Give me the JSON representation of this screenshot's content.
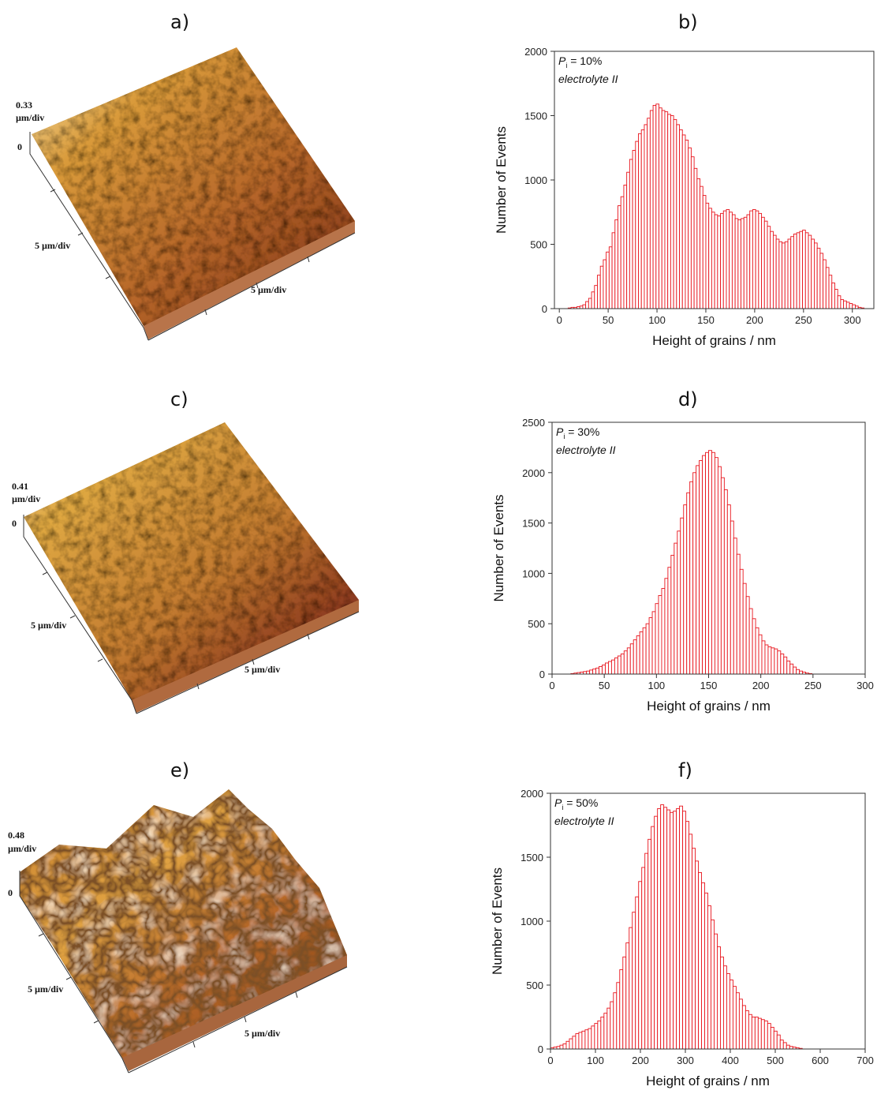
{
  "panel_labels": {
    "a": "a)",
    "b": "b)",
    "c": "c)",
    "d": "d)",
    "e": "e)",
    "f": "f)"
  },
  "afm": [
    {
      "z_scale": "0.33",
      "z_unit": "µm/div",
      "zero": "0",
      "xy_left": "5 µm/div",
      "xy_right": "5 µm/div"
    },
    {
      "z_scale": "0.41",
      "z_unit": "µm/div",
      "zero": "0",
      "xy_left": "5 µm/div",
      "xy_right": "5 µm/div"
    },
    {
      "z_scale": "0.48",
      "z_unit": "µm/div",
      "zero": "0",
      "xy_left": "5 µm/div",
      "xy_right": "5 µm/div"
    }
  ],
  "colors": {
    "bar_stroke": "#e8141c",
    "bar_fill": "#ffffff",
    "axis": "#333333"
  },
  "chart_data": [
    {
      "type": "bar",
      "annotation_symbol": "P",
      "annotation_sub": "i",
      "annotation_value": " = 10%",
      "annotation_line2": "electrolyte II",
      "xlabel": "Height of grains / nm",
      "ylabel": "Number of Events",
      "xlim": [
        -5,
        322
      ],
      "ylim": [
        0,
        2000
      ],
      "xticks": [
        0,
        50,
        100,
        150,
        200,
        250,
        300
      ],
      "yticks": [
        0,
        500,
        1000,
        1500,
        2000
      ],
      "bin_start": 0,
      "bin_width": 3,
      "values": [
        0,
        0,
        0,
        5,
        10,
        10,
        15,
        20,
        30,
        55,
        80,
        130,
        180,
        260,
        330,
        380,
        440,
        480,
        590,
        690,
        800,
        870,
        960,
        1060,
        1160,
        1230,
        1300,
        1360,
        1390,
        1430,
        1480,
        1540,
        1580,
        1590,
        1560,
        1540,
        1530,
        1510,
        1500,
        1470,
        1430,
        1390,
        1350,
        1310,
        1250,
        1180,
        1090,
        1010,
        950,
        880,
        820,
        780,
        750,
        730,
        720,
        740,
        760,
        770,
        750,
        730,
        700,
        690,
        700,
        710,
        730,
        760,
        770,
        760,
        740,
        710,
        680,
        640,
        600,
        570,
        540,
        520,
        510,
        520,
        540,
        560,
        580,
        590,
        600,
        610,
        590,
        570,
        540,
        510,
        470,
        430,
        380,
        320,
        260,
        200,
        150,
        100,
        70,
        60,
        50,
        40,
        30,
        20,
        10,
        5
      ]
    },
    {
      "type": "bar",
      "annotation_symbol": "P",
      "annotation_sub": "i",
      "annotation_value": " = 30%",
      "annotation_line2": "electrolyte II",
      "xlabel": "Height of grains / nm",
      "ylabel": "Number of Events",
      "xlim": [
        0,
        300
      ],
      "ylim": [
        0,
        2500
      ],
      "xticks": [
        0,
        50,
        100,
        150,
        200,
        250,
        300
      ],
      "yticks": [
        0,
        500,
        1000,
        1500,
        2000,
        2500
      ],
      "bin_start": 0,
      "bin_width": 3,
      "values": [
        0,
        0,
        0,
        0,
        0,
        0,
        5,
        10,
        15,
        20,
        25,
        30,
        40,
        50,
        60,
        75,
        90,
        110,
        125,
        140,
        160,
        180,
        200,
        230,
        260,
        300,
        340,
        380,
        420,
        460,
        500,
        560,
        620,
        700,
        780,
        850,
        950,
        1060,
        1180,
        1300,
        1420,
        1550,
        1680,
        1800,
        1910,
        2000,
        2070,
        2120,
        2170,
        2200,
        2220,
        2200,
        2150,
        2060,
        1950,
        1830,
        1680,
        1520,
        1350,
        1190,
        1040,
        900,
        770,
        650,
        550,
        460,
        390,
        330,
        290,
        270,
        260,
        250,
        230,
        200,
        170,
        130,
        100,
        70,
        45,
        30,
        20,
        10,
        5,
        0,
        0,
        0,
        0,
        0,
        0,
        0,
        0,
        0,
        0,
        0,
        0,
        0,
        0,
        0,
        0,
        0
      ]
    },
    {
      "type": "bar",
      "annotation_symbol": "P",
      "annotation_sub": "i",
      "annotation_value": " = 50%",
      "annotation_line2": "electrolyte II",
      "xlabel": "Height of grains / nm",
      "ylabel": "Number of Events",
      "xlim": [
        0,
        700
      ],
      "ylim": [
        0,
        2000
      ],
      "xticks": [
        0,
        100,
        200,
        300,
        400,
        500,
        600,
        700
      ],
      "yticks": [
        0,
        500,
        1000,
        1500,
        2000
      ],
      "bin_start": 0,
      "bin_width": 7,
      "values": [
        10,
        15,
        20,
        30,
        40,
        60,
        80,
        100,
        120,
        130,
        140,
        150,
        160,
        180,
        200,
        220,
        250,
        280,
        320,
        370,
        440,
        520,
        620,
        720,
        830,
        950,
        1070,
        1190,
        1310,
        1420,
        1530,
        1640,
        1740,
        1820,
        1880,
        1910,
        1890,
        1870,
        1850,
        1860,
        1880,
        1900,
        1860,
        1780,
        1680,
        1570,
        1470,
        1380,
        1300,
        1220,
        1120,
        1010,
        900,
        800,
        720,
        650,
        590,
        540,
        490,
        440,
        390,
        340,
        300,
        270,
        250,
        250,
        240,
        230,
        220,
        200,
        170,
        140,
        110,
        70,
        50,
        30,
        20,
        15,
        10,
        5,
        0,
        0,
        0,
        0,
        0,
        0,
        0,
        0,
        0,
        0,
        0,
        0,
        0,
        0,
        0,
        0,
        0,
        0,
        0,
        0
      ]
    }
  ]
}
